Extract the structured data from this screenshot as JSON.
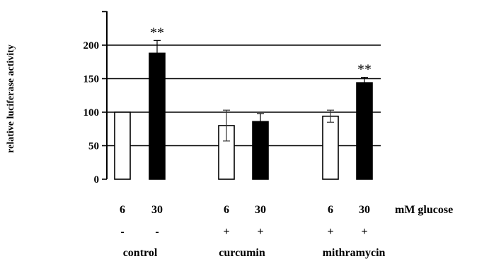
{
  "chart_data": {
    "type": "bar",
    "ylabel": "relative luciferase activity",
    "ylim": [
      0,
      250
    ],
    "yticks": [
      0,
      50,
      100,
      150,
      200
    ],
    "grid": "horizontal",
    "row_header": "mM glucose",
    "groups": [
      "control",
      "curcumin",
      "mithramycin"
    ],
    "bars": [
      {
        "group": "control",
        "glucose": "6",
        "treatment": "-",
        "value": 100,
        "error": 0,
        "fill": "white",
        "sig": ""
      },
      {
        "group": "control",
        "glucose": "30",
        "treatment": "-",
        "value": 188,
        "error": 19,
        "fill": "black",
        "sig": "**"
      },
      {
        "group": "curcumin",
        "glucose": "6",
        "treatment": "+",
        "value": 80,
        "error": 23,
        "fill": "white",
        "sig": ""
      },
      {
        "group": "curcumin",
        "glucose": "30",
        "treatment": "+",
        "value": 86,
        "error": 12,
        "fill": "black",
        "sig": ""
      },
      {
        "group": "mithramycin",
        "glucose": "6",
        "treatment": "+",
        "value": 94,
        "error": 9,
        "fill": "white",
        "sig": ""
      },
      {
        "group": "mithramycin",
        "glucose": "30",
        "treatment": "+",
        "value": 144,
        "error": 8,
        "fill": "black",
        "sig": "**"
      }
    ]
  }
}
